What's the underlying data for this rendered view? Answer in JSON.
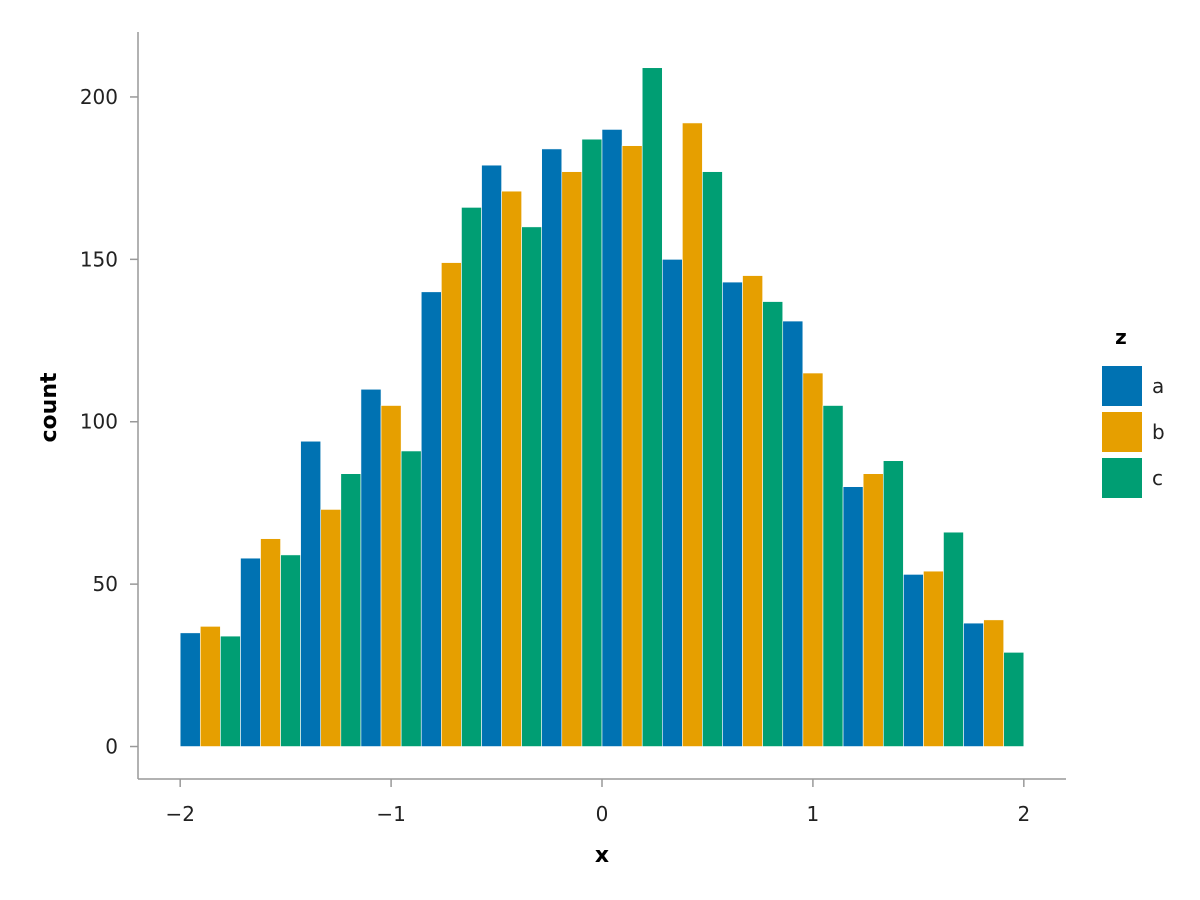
{
  "chart_data": {
    "type": "bar",
    "xlabel": "x",
    "ylabel": "count",
    "xlim": [
      -2.2,
      2.2
    ],
    "ylim": [
      -10,
      220
    ],
    "xticks": [
      -2,
      -1,
      0,
      1,
      2
    ],
    "xtick_labels": [
      "−2",
      "−1",
      "0",
      "1",
      "2"
    ],
    "yticks": [
      0,
      50,
      100,
      150,
      200
    ],
    "ytick_labels": [
      "0",
      "50",
      "100",
      "150",
      "200"
    ],
    "grid": false,
    "legend": {
      "title": "z",
      "placement": "right"
    },
    "bin_edges": [
      -2.0,
      -1.714,
      -1.429,
      -1.143,
      -0.857,
      -0.571,
      -0.286,
      0.0,
      0.286,
      0.571,
      0.857,
      1.143,
      1.429,
      1.714,
      2.0
    ],
    "series": [
      {
        "name": "a",
        "color": "#0072B2",
        "values": [
          35,
          58,
          94,
          110,
          140,
          179,
          184,
          190,
          150,
          143,
          131,
          80,
          53,
          38
        ]
      },
      {
        "name": "b",
        "color": "#E69F00",
        "values": [
          37,
          64,
          73,
          105,
          149,
          171,
          177,
          185,
          192,
          145,
          115,
          84,
          54,
          39
        ]
      },
      {
        "name": "c",
        "color": "#009E73",
        "values": [
          34,
          59,
          84,
          91,
          166,
          160,
          187,
          209,
          177,
          137,
          105,
          88,
          66,
          29
        ]
      }
    ]
  }
}
